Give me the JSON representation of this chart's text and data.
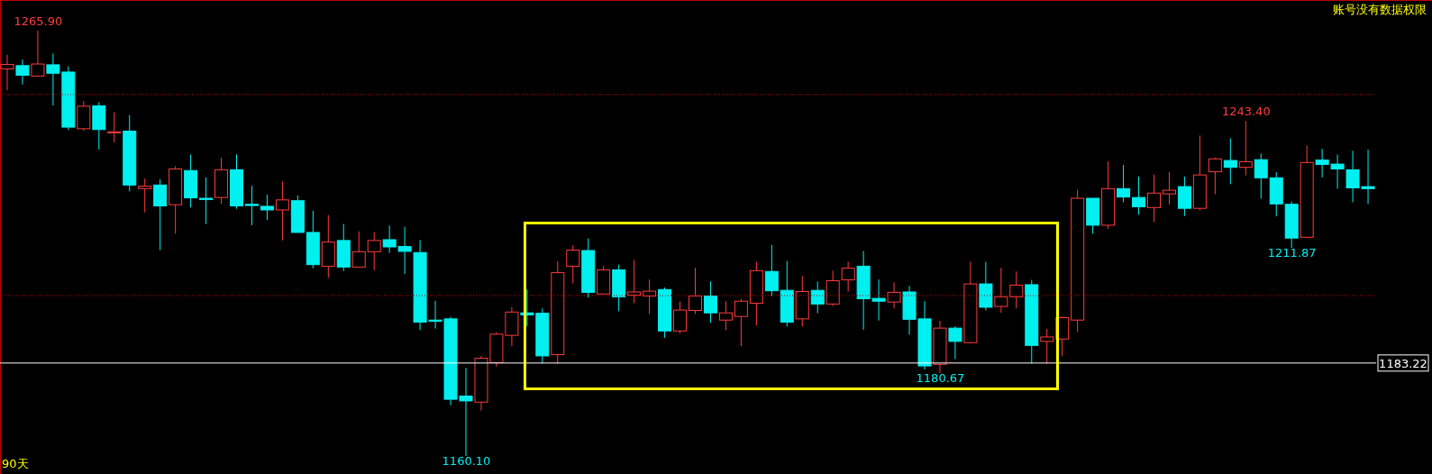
{
  "chart_data": {
    "type": "candlestick",
    "categories": [
      null,
      null,
      null,
      null,
      null,
      null,
      null,
      null,
      null,
      null,
      null,
      null,
      null,
      null,
      null,
      null,
      null,
      null,
      null,
      null,
      null,
      null,
      null,
      null,
      null,
      null,
      null,
      null,
      null,
      null,
      null,
      null,
      null,
      null,
      null,
      null,
      null,
      null,
      null,
      null,
      null,
      null,
      null,
      null,
      null,
      null,
      null,
      null,
      null,
      null,
      null,
      null,
      null,
      null,
      null,
      null,
      null,
      null,
      null,
      null,
      null,
      null,
      null,
      null,
      null,
      null,
      null,
      null,
      null,
      null,
      null,
      null,
      null,
      null,
      null,
      null,
      null,
      null,
      null,
      null,
      null,
      null,
      null,
      null,
      null,
      null,
      null,
      null,
      null,
      null
    ],
    "ohlc": [
      [
        1256.4,
        1259.9,
        1251.1,
        1257.5
      ],
      [
        1257.2,
        1258.7,
        1252.5,
        1254.8
      ],
      [
        1254.6,
        1265.9,
        1254.6,
        1257.6
      ],
      [
        1257.4,
        1260.2,
        1247.3,
        1255.3
      ],
      [
        1255.6,
        1257.0,
        1241.2,
        1241.9
      ],
      [
        1241.5,
        1248.4,
        1241.0,
        1247.1
      ],
      [
        1247.2,
        1248.1,
        1236.3,
        1241.3
      ],
      [
        1240.6,
        1245.6,
        1238.1,
        1240.7
      ],
      [
        1240.9,
        1244.9,
        1225.9,
        1227.5
      ],
      [
        1226.6,
        1229.1,
        1220.7,
        1227.2
      ],
      [
        1227.5,
        1228.9,
        1211.3,
        1222.3
      ],
      [
        1222.6,
        1232.2,
        1215.4,
        1231.5
      ],
      [
        1231.1,
        1235.1,
        1221.9,
        1224.3
      ],
      [
        1224.2,
        1229.4,
        1217.8,
        1223.9
      ],
      [
        1224.4,
        1234.3,
        1222.8,
        1231.3
      ],
      [
        1231.3,
        1235.1,
        1221.6,
        1222.3
      ],
      [
        1222.7,
        1227.3,
        1217.5,
        1222.4
      ],
      [
        1222.2,
        1225.1,
        1218.8,
        1221.3
      ],
      [
        1221.3,
        1228.4,
        1213.7,
        1223.8
      ],
      [
        1223.6,
        1224.9,
        1215.7,
        1215.7
      ],
      [
        1215.7,
        1221.1,
        1206.8,
        1207.7
      ],
      [
        1207.3,
        1220.0,
        1204.4,
        1213.3
      ],
      [
        1213.7,
        1217.8,
        1206.1,
        1207.1
      ],
      [
        1207.1,
        1216.0,
        1207.1,
        1210.9
      ],
      [
        1210.9,
        1215.8,
        1206.3,
        1213.7
      ],
      [
        1213.9,
        1217.4,
        1210.6,
        1212.1
      ],
      [
        1212.2,
        1217.1,
        1205.4,
        1211.0
      ],
      [
        1210.7,
        1213.8,
        1191.4,
        1193.4
      ],
      [
        1193.9,
        1198.7,
        1191.8,
        1193.6
      ],
      [
        1194.2,
        1194.7,
        1172.7,
        1174.2
      ],
      [
        1175.0,
        1182.0,
        1160.1,
        1173.8
      ],
      [
        1173.5,
        1185.0,
        1171.4,
        1184.4
      ],
      [
        1183.3,
        1190.9,
        1182.3,
        1190.4
      ],
      [
        1190.1,
        1197.1,
        1187.4,
        1195.9
      ],
      [
        1195.7,
        1201.5,
        1192.4,
        1195.2
      ],
      [
        1195.6,
        1196.8,
        1183.1,
        1185.0
      ],
      [
        1185.3,
        1208.5,
        1183.0,
        1205.7
      ],
      [
        1207.3,
        1212.5,
        1203.0,
        1211.3
      ],
      [
        1211.2,
        1214.2,
        1199.5,
        1200.8
      ],
      [
        1200.4,
        1207.4,
        1200.4,
        1206.4
      ],
      [
        1206.4,
        1207.7,
        1196.1,
        1199.7
      ],
      [
        1200.1,
        1208.9,
        1198.1,
        1200.9
      ],
      [
        1199.9,
        1204.0,
        1195.4,
        1201.1
      ],
      [
        1201.5,
        1202.0,
        1189.5,
        1191.2
      ],
      [
        1191.2,
        1198.5,
        1190.6,
        1196.4
      ],
      [
        1196.3,
        1206.9,
        1195.4,
        1199.9
      ],
      [
        1199.9,
        1203.5,
        1193.2,
        1195.7
      ],
      [
        1193.9,
        1198.6,
        1191.4,
        1195.7
      ],
      [
        1194.8,
        1199.2,
        1187.4,
        1198.6
      ],
      [
        1198.1,
        1208.4,
        1192.6,
        1206.2
      ],
      [
        1206.0,
        1212.6,
        1199.9,
        1201.2
      ],
      [
        1201.3,
        1208.6,
        1192.3,
        1193.4
      ],
      [
        1194.2,
        1204.9,
        1192.3,
        1201.0
      ],
      [
        1201.3,
        1203.5,
        1195.6,
        1197.9
      ],
      [
        1197.9,
        1206.2,
        1197.4,
        1203.7
      ],
      [
        1203.9,
        1208.4,
        1201.0,
        1206.8
      ],
      [
        1207.3,
        1211.1,
        1191.5,
        1199.2
      ],
      [
        1199.3,
        1204.0,
        1193.8,
        1198.6
      ],
      [
        1198.4,
        1203.3,
        1196.8,
        1200.8
      ],
      [
        1200.9,
        1202.4,
        1190.3,
        1194.1
      ],
      [
        1194.2,
        1198.6,
        1181.6,
        1182.5
      ],
      [
        1182.9,
        1193.7,
        1180.67,
        1191.9
      ],
      [
        1191.9,
        1192.4,
        1184.2,
        1188.6
      ],
      [
        1188.3,
        1208.4,
        1188.1,
        1202.9
      ],
      [
        1202.9,
        1208.4,
        1196.3,
        1197.1
      ],
      [
        1197.3,
        1206.9,
        1195.7,
        1199.7
      ],
      [
        1199.7,
        1206.0,
        1196.8,
        1202.6
      ],
      [
        1202.7,
        1203.9,
        1183.1,
        1187.6
      ],
      [
        1188.6,
        1191.7,
        1183.0,
        1189.7
      ],
      [
        1189.2,
        1194.8,
        1185.0,
        1194.5
      ],
      [
        1193.9,
        1226.3,
        1190.9,
        1224.2
      ],
      [
        1224.2,
        1224.2,
        1215.4,
        1217.5
      ],
      [
        1217.5,
        1233.4,
        1216.6,
        1226.6
      ],
      [
        1226.6,
        1232.5,
        1223.2,
        1224.5
      ],
      [
        1224.4,
        1229.6,
        1220.1,
        1222.1
      ],
      [
        1221.9,
        1230.1,
        1218.3,
        1225.5
      ],
      [
        1225.3,
        1230.7,
        1222.7,
        1226.2
      ],
      [
        1227.1,
        1229.6,
        1219.8,
        1221.7
      ],
      [
        1221.7,
        1239.8,
        1221.2,
        1230.0
      ],
      [
        1230.8,
        1234.3,
        1225.2,
        1234.0
      ],
      [
        1233.6,
        1239.1,
        1227.7,
        1231.9
      ],
      [
        1231.9,
        1243.4,
        1229.9,
        1233.3
      ],
      [
        1233.8,
        1235.3,
        1224.1,
        1229.3
      ],
      [
        1229.3,
        1230.7,
        1219.7,
        1222.8
      ],
      [
        1222.7,
        1223.4,
        1211.87,
        1214.3
      ],
      [
        1214.5,
        1237.3,
        1214.4,
        1233.1
      ],
      [
        1233.7,
        1236.5,
        1229.4,
        1232.6
      ],
      [
        1232.7,
        1235.1,
        1226.6,
        1231.5
      ],
      [
        1231.3,
        1236.0,
        1223.2,
        1226.8
      ],
      [
        1227.1,
        1236.3,
        1222.8,
        1226.6
      ]
    ],
    "ref_lines": [
      {
        "axis": "y",
        "value": 1183.22,
        "label": "1183.22",
        "color": "#ffffff"
      },
      {
        "axis": "y",
        "value": 1250,
        "color": "#c00000",
        "line_style": "dotted"
      },
      {
        "axis": "y",
        "value": 1200,
        "color": "#c00000",
        "line_style": "dotted"
      }
    ],
    "annotations": [
      "账号没有数据权限",
      "90天",
      {
        "text": "1265.90",
        "y": 1265.9
      },
      {
        "text": "1243.40",
        "y": 1243.4
      },
      {
        "text": "1211.87",
        "y": 1211.87
      },
      {
        "text": "1180.67",
        "y": 1180.67
      },
      {
        "text": "1160.10",
        "y": 1160.1
      }
    ]
  }
}
